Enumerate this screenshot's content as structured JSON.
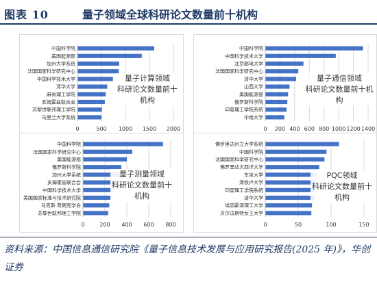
{
  "header": {
    "tag": "图表 10",
    "title": "量子领域全球科研论文数量前十机构"
  },
  "source": "资料来源：中国信息通信研究院《量子信息技术发展与应用研究报告(2025 年)》，华创证券",
  "colors": {
    "bar": "#4472c4",
    "grid": "#d9d9d9",
    "axis_text": "#333333",
    "header": "#1f3a66"
  },
  "chart_data": [
    {
      "type": "bar",
      "orientation": "horizontal",
      "title": "量子计算领域\n科研论文数量前十机构",
      "categories": [
        "中国科学院",
        "美国能源部",
        "加州大学系统",
        "法国国家科学研究中心",
        "中国科学技术大学",
        "清华大学",
        "麻省理工学院",
        "亥姆霍兹联合会",
        "苏黎世联邦理工学院",
        "马里兰大学系统"
      ],
      "values": [
        1600,
        1340,
        870,
        860,
        740,
        620,
        590,
        570,
        510,
        500
      ],
      "xlim": [
        0,
        2000
      ],
      "xticks": [
        "0",
        "500",
        "1000",
        "1500",
        "2000"
      ],
      "grid": true
    },
    {
      "type": "bar",
      "orientation": "horizontal",
      "title": "量子通信领域\n科研论文数量前十机构",
      "categories": [
        "中国科学院",
        "中国科学技术大学",
        "北京邮电大学",
        "法国国家科学研究中心",
        "清华大学",
        "山西大学",
        "美国能源部",
        "俄罗斯科学院",
        "印度理工学院系统",
        "中南大学"
      ],
      "values": [
        1330,
        960,
        520,
        450,
        420,
        330,
        310,
        300,
        290,
        260
      ],
      "xlim": [
        0,
        1400
      ],
      "xticks": [
        "0",
        "200",
        "400",
        "600",
        "800",
        "1000",
        "1200",
        "1400"
      ],
      "grid": true
    },
    {
      "type": "bar",
      "orientation": "horizontal",
      "title": "量子测量领域\n科研论文数量前十机构",
      "categories": [
        "中国科学院",
        "法国国家科学研究中心",
        "美国能源部",
        "俄罗斯科学院",
        "加州大学系统",
        "亥姆霍兹联合会",
        "中国科学技术大学",
        "美国国家标准与技术研究院",
        "马克斯·普朗克学会",
        "苏黎世联邦理工学院"
      ],
      "values": [
        730,
        450,
        400,
        350,
        340,
        280,
        270,
        250,
        240,
        230
      ],
      "xlim": [
        0,
        800
      ],
      "xticks": [
        "0",
        "200",
        "400",
        "600",
        "800"
      ],
      "grid": true
    },
    {
      "type": "bar",
      "orientation": "horizontal",
      "title": "PQC领域\n科研论文数量前十机构",
      "categories": [
        "佛罗里达州立大学系统",
        "中国科学院",
        "法国国家科学研究中心",
        "佛罗里达大西洋大学",
        "东京大学",
        "滑铁卢大学",
        "印度理工学院系统",
        "清华大学",
        "埃因霍温理工大学",
        "贝尔法斯特女王大学"
      ],
      "values": [
        112,
        93,
        90,
        82,
        78,
        76,
        76,
        75,
        71,
        70
      ],
      "xlim": [
        0,
        150
      ],
      "xticks": [
        "0",
        "50",
        "100",
        "150"
      ],
      "grid": true
    }
  ]
}
